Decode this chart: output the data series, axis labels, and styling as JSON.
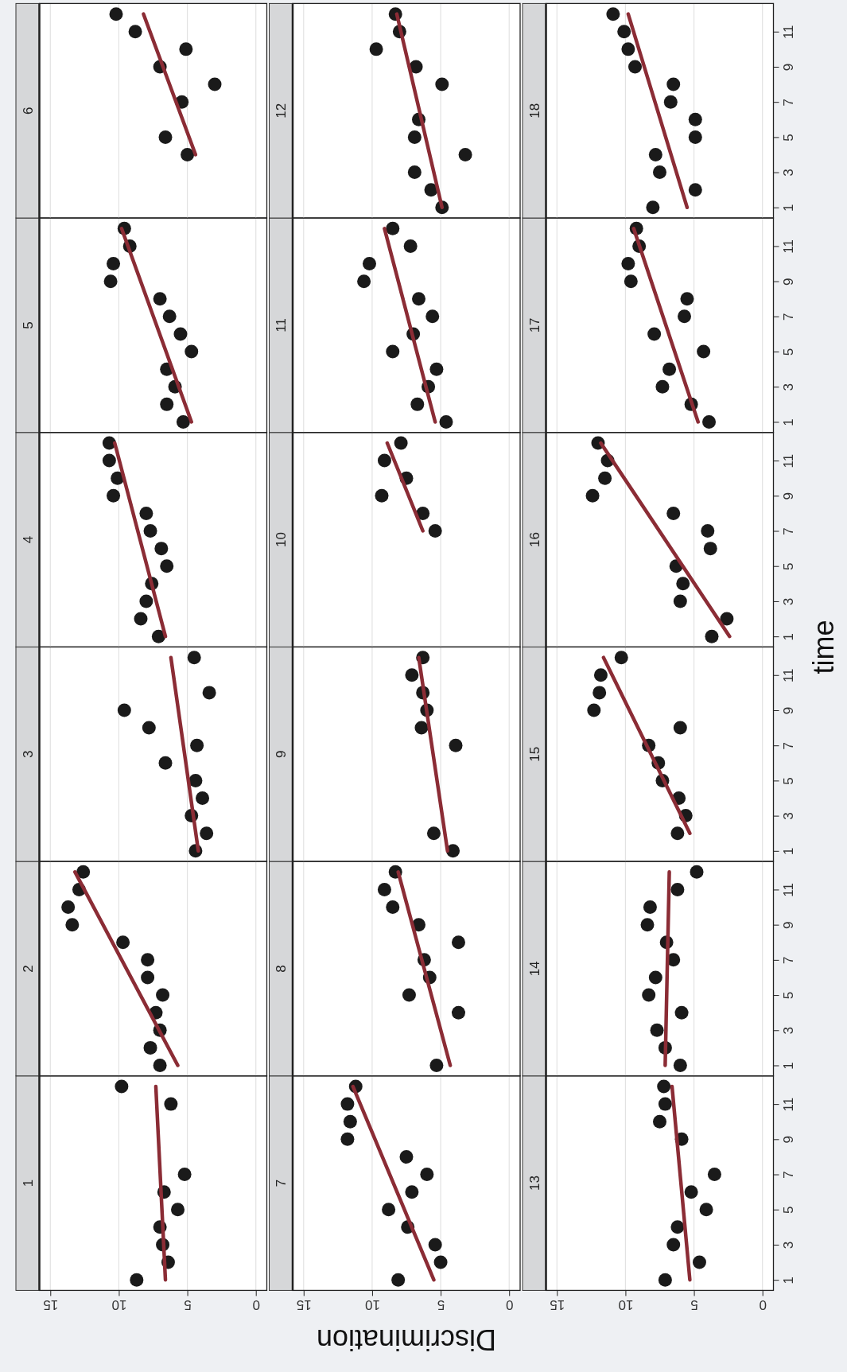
{
  "chart_data": [
    {
      "type": "scatter",
      "title": "1",
      "xlim": [
        15.8,
        -0.8
      ],
      "xticks": [
        0,
        5,
        10,
        15
      ],
      "ylim": [
        0.4,
        12.6
      ],
      "yticks": [
        1,
        3,
        5,
        7,
        9,
        11
      ],
      "grid": "x",
      "tick_labels": "x",
      "series": [
        {
          "color": "#1a1a1a",
          "marker": "circle",
          "x": [
            8.7,
            6.4,
            6.8,
            7.0,
            5.7,
            6.7,
            5.2,
            6.2,
            9.8
          ],
          "values": [
            1,
            2,
            3,
            4,
            5,
            6,
            7,
            11,
            12
          ]
        },
        {
          "type": "line",
          "color": "#8b2c35",
          "x": [
            6.6,
            7.3
          ],
          "values": [
            1,
            12
          ]
        }
      ]
    },
    {
      "type": "scatter",
      "title": "2",
      "xlim": [
        15.8,
        -0.8
      ],
      "xticks": [
        0,
        5,
        10,
        15
      ],
      "ylim": [
        0.4,
        12.6
      ],
      "yticks": [
        1,
        3,
        5,
        7,
        9,
        11
      ],
      "grid": "x",
      "tick_labels": false,
      "series": [
        {
          "color": "#1a1a1a",
          "marker": "circle",
          "x": [
            7.0,
            7.7,
            7.0,
            7.3,
            6.8,
            7.9,
            7.9,
            9.7,
            13.4,
            13.7,
            12.9,
            12.6
          ],
          "values": [
            1,
            2,
            3,
            4,
            5,
            6,
            7,
            8,
            9,
            10,
            11,
            12
          ]
        },
        {
          "type": "line",
          "color": "#8b2c35",
          "x": [
            5.7,
            13.2
          ],
          "values": [
            1,
            12
          ]
        }
      ]
    },
    {
      "type": "scatter",
      "title": "3",
      "xlim": [
        15.8,
        -0.8
      ],
      "xticks": [
        0,
        5,
        10,
        15
      ],
      "ylim": [
        0.4,
        12.6
      ],
      "yticks": [
        1,
        3,
        5,
        7,
        9,
        11
      ],
      "grid": "x",
      "tick_labels": false,
      "series": [
        {
          "color": "#1a1a1a",
          "marker": "circle",
          "x": [
            4.4,
            3.6,
            4.7,
            3.9,
            4.4,
            6.6,
            4.3,
            7.8,
            9.6,
            3.4,
            4.5
          ],
          "values": [
            1,
            2,
            3,
            4,
            5,
            6,
            7,
            8,
            9,
            10,
            12
          ]
        },
        {
          "type": "line",
          "color": "#8b2c35",
          "x": [
            4.2,
            6.2
          ],
          "values": [
            1,
            12
          ]
        }
      ]
    },
    {
      "type": "scatter",
      "title": "4",
      "xlim": [
        15.8,
        -0.8
      ],
      "xticks": [
        0,
        5,
        10,
        15
      ],
      "ylim": [
        0.4,
        12.6
      ],
      "yticks": [
        1,
        3,
        5,
        7,
        9,
        11
      ],
      "grid": "x",
      "tick_labels": false,
      "series": [
        {
          "color": "#1a1a1a",
          "marker": "circle",
          "x": [
            7.1,
            8.4,
            8.0,
            7.6,
            6.5,
            6.9,
            7.7,
            8.0,
            10.4,
            10.1,
            10.7,
            10.7
          ],
          "values": [
            1,
            2,
            3,
            4,
            5,
            6,
            7,
            8,
            9,
            10,
            11,
            12
          ]
        },
        {
          "type": "line",
          "color": "#8b2c35",
          "x": [
            6.6,
            10.3
          ],
          "values": [
            1,
            12
          ]
        }
      ]
    },
    {
      "type": "scatter",
      "title": "5",
      "xlim": [
        15.8,
        -0.8
      ],
      "xticks": [
        0,
        5,
        10,
        15
      ],
      "ylim": [
        0.4,
        12.6
      ],
      "yticks": [
        1,
        3,
        5,
        7,
        9,
        11
      ],
      "grid": "x",
      "tick_labels": false,
      "series": [
        {
          "color": "#1a1a1a",
          "marker": "circle",
          "x": [
            5.3,
            6.5,
            5.9,
            6.5,
            4.7,
            5.5,
            6.3,
            7.0,
            10.6,
            10.4,
            9.2,
            9.6
          ],
          "values": [
            1,
            2,
            3,
            4,
            5,
            6,
            7,
            8,
            9,
            10,
            11,
            12
          ]
        },
        {
          "type": "line",
          "color": "#8b2c35",
          "x": [
            4.7,
            9.8
          ],
          "values": [
            1,
            12
          ]
        }
      ]
    },
    {
      "type": "scatter",
      "title": "6",
      "xlim": [
        15.8,
        -0.8
      ],
      "xticks": [
        0,
        5,
        10,
        15
      ],
      "ylim": [
        0.4,
        12.6
      ],
      "yticks": [
        1,
        3,
        5,
        7,
        9,
        11
      ],
      "grid": "x",
      "tick_labels": false,
      "series": [
        {
          "color": "#1a1a1a",
          "marker": "circle",
          "x": [
            5.0,
            6.6,
            5.4,
            3.0,
            7.0,
            5.1,
            8.8,
            10.2
          ],
          "values": [
            4,
            5,
            7,
            8,
            9,
            10,
            11,
            12
          ]
        },
        {
          "type": "line",
          "color": "#8b2c35",
          "x": [
            4.4,
            8.2
          ],
          "values": [
            4,
            12
          ]
        }
      ]
    },
    {
      "type": "scatter",
      "title": "7",
      "xlabel": "Discrimination",
      "xlim": [
        15.8,
        -0.8
      ],
      "xticks": [
        0,
        5,
        10,
        15
      ],
      "ylim": [
        0.4,
        12.6
      ],
      "yticks": [
        1,
        3,
        5,
        7,
        9,
        11
      ],
      "grid": "x",
      "tick_labels": "x",
      "series": [
        {
          "color": "#1a1a1a",
          "marker": "circle",
          "x": [
            8.1,
            5.0,
            5.4,
            7.4,
            8.8,
            7.1,
            6.0,
            7.5,
            11.8,
            11.6,
            11.8,
            11.2
          ],
          "values": [
            1,
            2,
            3,
            4,
            5,
            6,
            7,
            8,
            9,
            10,
            11,
            12
          ]
        },
        {
          "type": "line",
          "color": "#8b2c35",
          "x": [
            5.5,
            11.4
          ],
          "values": [
            1,
            12
          ]
        }
      ]
    },
    {
      "type": "scatter",
      "title": "8",
      "xlim": [
        15.8,
        -0.8
      ],
      "xticks": [
        0,
        5,
        10,
        15
      ],
      "ylim": [
        0.4,
        12.6
      ],
      "yticks": [
        1,
        3,
        5,
        7,
        9,
        11
      ],
      "grid": "x",
      "tick_labels": false,
      "series": [
        {
          "color": "#1a1a1a",
          "marker": "circle",
          "x": [
            5.3,
            3.7,
            7.3,
            5.8,
            6.2,
            3.7,
            6.6,
            8.5,
            9.1,
            8.3
          ],
          "values": [
            1,
            4,
            5,
            6,
            7,
            8,
            9,
            10,
            11,
            12
          ]
        },
        {
          "type": "line",
          "color": "#8b2c35",
          "x": [
            4.3,
            8.1
          ],
          "values": [
            1,
            12
          ]
        }
      ]
    },
    {
      "type": "scatter",
      "title": "9",
      "xlim": [
        15.8,
        -0.8
      ],
      "xticks": [
        0,
        5,
        10,
        15
      ],
      "ylim": [
        0.4,
        12.6
      ],
      "yticks": [
        1,
        3,
        5,
        7,
        9,
        11
      ],
      "grid": "x",
      "tick_labels": false,
      "series": [
        {
          "color": "#1a1a1a",
          "marker": "circle",
          "x": [
            4.1,
            5.5,
            3.9,
            6.4,
            6.0,
            6.3,
            7.1,
            6.3
          ],
          "values": [
            1,
            2,
            7,
            8,
            9,
            10,
            11,
            12
          ]
        },
        {
          "type": "line",
          "color": "#8b2c35",
          "x": [
            4.5,
            6.6
          ],
          "values": [
            1,
            12
          ]
        }
      ]
    },
    {
      "type": "scatter",
      "title": "10",
      "xlim": [
        15.8,
        -0.8
      ],
      "xticks": [
        0,
        5,
        10,
        15
      ],
      "ylim": [
        0.4,
        12.6
      ],
      "yticks": [
        1,
        3,
        5,
        7,
        9,
        11
      ],
      "grid": "x",
      "tick_labels": false,
      "series": [
        {
          "color": "#1a1a1a",
          "marker": "circle",
          "x": [
            5.4,
            6.3,
            9.3,
            7.5,
            9.1,
            7.9
          ],
          "values": [
            7,
            8,
            9,
            10,
            11,
            12
          ]
        },
        {
          "type": "line",
          "color": "#8b2c35",
          "x": [
            6.3,
            8.9
          ],
          "values": [
            7,
            12
          ]
        }
      ]
    },
    {
      "type": "scatter",
      "title": "11",
      "xlim": [
        15.8,
        -0.8
      ],
      "xticks": [
        0,
        5,
        10,
        15
      ],
      "ylim": [
        0.4,
        12.6
      ],
      "yticks": [
        1,
        3,
        5,
        7,
        9,
        11
      ],
      "grid": "x",
      "tick_labels": false,
      "series": [
        {
          "color": "#1a1a1a",
          "marker": "circle",
          "x": [
            4.6,
            6.7,
            5.9,
            5.3,
            8.5,
            7.0,
            5.6,
            6.6,
            10.6,
            10.2,
            7.2,
            8.5
          ],
          "values": [
            1,
            2,
            3,
            4,
            5,
            6,
            7,
            8,
            9,
            10,
            11,
            12
          ]
        },
        {
          "type": "line",
          "color": "#8b2c35",
          "x": [
            5.4,
            9.1
          ],
          "values": [
            1,
            12
          ]
        }
      ]
    },
    {
      "type": "scatter",
      "title": "12",
      "xlim": [
        15.8,
        -0.8
      ],
      "xticks": [
        0,
        5,
        10,
        15
      ],
      "ylim": [
        0.4,
        12.6
      ],
      "yticks": [
        1,
        3,
        5,
        7,
        9,
        11
      ],
      "grid": "x",
      "tick_labels": false,
      "series": [
        {
          "color": "#1a1a1a",
          "marker": "circle",
          "x": [
            4.9,
            5.7,
            6.9,
            3.2,
            6.9,
            6.6,
            4.9,
            6.8,
            9.7,
            8.0,
            8.3
          ],
          "values": [
            1,
            2,
            3,
            4,
            5,
            6,
            8,
            9,
            10,
            11,
            12
          ]
        },
        {
          "type": "line",
          "color": "#8b2c35",
          "x": [
            4.9,
            8.2
          ],
          "values": [
            1,
            12
          ]
        }
      ]
    },
    {
      "type": "scatter",
      "title": "13",
      "xlim": [
        15.8,
        -0.8
      ],
      "xticks": [
        0,
        5,
        10,
        15
      ],
      "ylim": [
        0.4,
        12.6
      ],
      "yticks": [
        1,
        3,
        5,
        7,
        9,
        11
      ],
      "grid": "x",
      "series": [
        {
          "color": "#1a1a1a",
          "marker": "circle",
          "x": [
            7.1,
            4.6,
            6.5,
            6.2,
            4.1,
            5.2,
            3.5,
            5.9,
            7.5,
            7.1,
            7.2
          ],
          "values": [
            1,
            2,
            3,
            4,
            5,
            6,
            7,
            9,
            10,
            11,
            12
          ]
        },
        {
          "type": "line",
          "color": "#8b2c35",
          "x": [
            5.3,
            6.6
          ],
          "values": [
            1,
            12
          ]
        }
      ]
    },
    {
      "type": "scatter",
      "title": "14",
      "xlim": [
        15.8,
        -0.8
      ],
      "xticks": [
        0,
        5,
        10,
        15
      ],
      "ylim": [
        0.4,
        12.6
      ],
      "yticks": [
        1,
        3,
        5,
        7,
        9,
        11
      ],
      "grid": "x",
      "tick_labels": "y",
      "series": [
        {
          "color": "#1a1a1a",
          "marker": "circle",
          "x": [
            6.0,
            7.1,
            7.7,
            5.9,
            8.3,
            7.8,
            6.5,
            7.0,
            8.4,
            8.2,
            6.2,
            4.8
          ],
          "values": [
            1,
            2,
            3,
            4,
            5,
            6,
            7,
            8,
            9,
            10,
            11,
            12
          ]
        },
        {
          "type": "line",
          "color": "#8b2c35",
          "x": [
            7.1,
            6.8
          ],
          "values": [
            1,
            12
          ]
        }
      ]
    },
    {
      "type": "scatter",
      "title": "15",
      "ylabel": "time",
      "xlim": [
        15.8,
        -0.8
      ],
      "xticks": [
        0,
        5,
        10,
        15
      ],
      "ylim": [
        0.4,
        12.6
      ],
      "yticks": [
        1,
        3,
        5,
        7,
        9,
        11
      ],
      "grid": "x",
      "tick_labels": "y",
      "series": [
        {
          "color": "#1a1a1a",
          "marker": "circle",
          "x": [
            6.2,
            5.6,
            6.1,
            7.3,
            7.6,
            8.3,
            6.0,
            12.3,
            11.9,
            11.8,
            10.3
          ],
          "values": [
            2,
            3,
            4,
            5,
            6,
            7,
            8,
            9,
            10,
            11,
            12
          ]
        },
        {
          "type": "line",
          "color": "#8b2c35",
          "x": [
            5.3,
            11.6
          ],
          "values": [
            2,
            12
          ]
        }
      ]
    },
    {
      "type": "scatter",
      "title": "16",
      "xlim": [
        15.8,
        -0.8
      ],
      "xticks": [
        0,
        5,
        10,
        15
      ],
      "ylim": [
        0.4,
        12.6
      ],
      "yticks": [
        1,
        3,
        5,
        7,
        9,
        11
      ],
      "grid": "x",
      "tick_labels": "y",
      "series": [
        {
          "color": "#1a1a1a",
          "marker": "circle",
          "x": [
            3.7,
            2.6,
            6.0,
            5.8,
            6.3,
            3.8,
            4.0,
            6.5,
            12.4,
            11.5,
            11.3,
            12.0
          ],
          "values": [
            1,
            2,
            3,
            4,
            5,
            6,
            7,
            8,
            9,
            10,
            11,
            12
          ]
        },
        {
          "type": "line",
          "color": "#8b2c35",
          "x": [
            2.4,
            11.8
          ],
          "values": [
            1,
            12
          ]
        }
      ]
    },
    {
      "type": "scatter",
      "title": "17",
      "xlim": [
        15.8,
        -0.8
      ],
      "xticks": [
        0,
        5,
        10,
        15
      ],
      "ylim": [
        0.4,
        12.6
      ],
      "yticks": [
        1,
        3,
        5,
        7,
        9,
        11
      ],
      "grid": "x",
      "tick_labels": "y",
      "series": [
        {
          "color": "#1a1a1a",
          "marker": "circle",
          "x": [
            3.9,
            5.2,
            7.3,
            6.8,
            4.3,
            7.9,
            5.7,
            5.5,
            9.6,
            9.8,
            9.0,
            9.2
          ],
          "values": [
            1,
            2,
            3,
            4,
            5,
            6,
            7,
            8,
            9,
            10,
            11,
            12
          ]
        },
        {
          "type": "line",
          "color": "#8b2c35",
          "x": [
            4.7,
            9.4
          ],
          "values": [
            1,
            12
          ]
        }
      ]
    },
    {
      "type": "scatter",
      "title": "18",
      "xlim": [
        15.8,
        -0.8
      ],
      "xticks": [
        0,
        5,
        10,
        15
      ],
      "ylim": [
        0.4,
        12.6
      ],
      "yticks": [
        1,
        3,
        5,
        7,
        9,
        11
      ],
      "grid": "x",
      "tick_labels": "y",
      "series": [
        {
          "color": "#1a1a1a",
          "marker": "circle",
          "x": [
            8.0,
            4.9,
            7.5,
            7.8,
            4.9,
            4.9,
            6.7,
            6.5,
            9.3,
            9.8,
            10.1,
            10.9
          ],
          "values": [
            1,
            2,
            3,
            4,
            5,
            6,
            7,
            8,
            9,
            10,
            11,
            12
          ]
        },
        {
          "type": "line",
          "color": "#8b2c35",
          "x": [
            5.5,
            9.8
          ],
          "values": [
            1,
            12
          ]
        }
      ]
    }
  ]
}
